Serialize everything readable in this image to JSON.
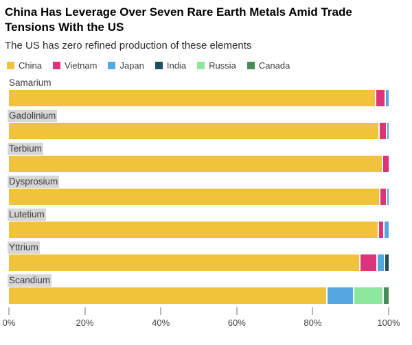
{
  "header": {
    "title": "China Has Leverage Over Seven Rare Earth Metals Amid Trade Tensions With the US",
    "subtitle": "The US has zero refined production of these elements"
  },
  "legend": [
    {
      "label": "China",
      "color": "#F1C33C"
    },
    {
      "label": "Vietnam",
      "color": "#DC3479"
    },
    {
      "label": "Japan",
      "color": "#55A7E0"
    },
    {
      "label": "India",
      "color": "#1F4E63"
    },
    {
      "label": "Russia",
      "color": "#8BE79B"
    },
    {
      "label": "Canada",
      "color": "#478B5B"
    }
  ],
  "colors": {
    "China": "#F1C33C",
    "Vietnam": "#DC3479",
    "Japan": "#55A7E0",
    "India": "#1F4E63",
    "Russia": "#8BE79B",
    "Canada": "#478B5B"
  },
  "chart_data": {
    "type": "bar",
    "orientation": "horizontal",
    "stacked": true,
    "unit": "percent share of refined production",
    "xlim": [
      0,
      100
    ],
    "x_ticks": [
      "0%",
      "20%",
      "40%",
      "60%",
      "80%",
      "100%"
    ],
    "series_names": [
      "China",
      "Vietnam",
      "Japan",
      "India",
      "Russia",
      "Canada"
    ],
    "categories": [
      "Samarium",
      "Gadolinium",
      "Terbium",
      "Dysprosium",
      "Lutetium",
      "Yttrium",
      "Scandium"
    ],
    "rows": [
      {
        "label": "Samarium",
        "label_highlighted": false,
        "segments": [
          {
            "name": "China",
            "value": 97.0
          },
          {
            "name": "Vietnam",
            "value": 2.3
          },
          {
            "name": "Japan",
            "value": 0.7
          }
        ]
      },
      {
        "label": "Gadolinium",
        "label_highlighted": true,
        "segments": [
          {
            "name": "China",
            "value": 98.0
          },
          {
            "name": "Vietnam",
            "value": 1.7
          },
          {
            "name": "Japan",
            "value": 0.3
          }
        ]
      },
      {
        "label": "Terbium",
        "label_highlighted": true,
        "segments": [
          {
            "name": "China",
            "value": 98.6
          },
          {
            "name": "Vietnam",
            "value": 1.4
          }
        ]
      },
      {
        "label": "Dysprosium",
        "label_highlighted": true,
        "segments": [
          {
            "name": "China",
            "value": 98.2
          },
          {
            "name": "Vietnam",
            "value": 1.4
          },
          {
            "name": "Japan",
            "value": 0.4
          }
        ]
      },
      {
        "label": "Lutetium",
        "label_highlighted": true,
        "segments": [
          {
            "name": "China",
            "value": 97.9
          },
          {
            "name": "Vietnam",
            "value": 1.0
          },
          {
            "name": "Japan",
            "value": 1.1
          }
        ]
      },
      {
        "label": "Yttrium",
        "label_highlighted": true,
        "segments": [
          {
            "name": "China",
            "value": 93.2
          },
          {
            "name": "Vietnam",
            "value": 4.3
          },
          {
            "name": "Japan",
            "value": 1.6
          },
          {
            "name": "India",
            "value": 0.9
          }
        ]
      },
      {
        "label": "Scandium",
        "label_highlighted": true,
        "segments": [
          {
            "name": "China",
            "value": 84.4
          },
          {
            "name": "Japan",
            "value": 6.9
          },
          {
            "name": "Russia",
            "value": 7.5
          },
          {
            "name": "Canada",
            "value": 1.2
          }
        ]
      }
    ]
  }
}
